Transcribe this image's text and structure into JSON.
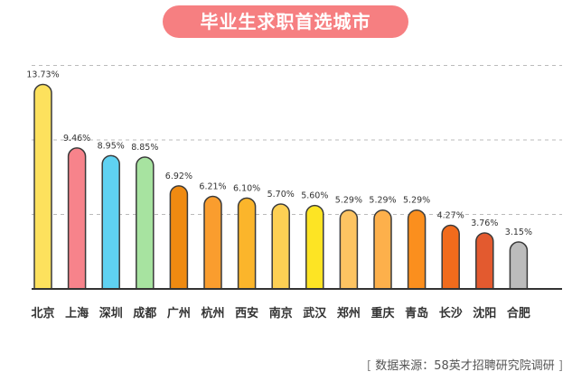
{
  "title": "毕业生求职首选城市",
  "source": {
    "open": "[",
    "text": "数据来源：58英才招聘研究院调研",
    "close": "]"
  },
  "chart_data": {
    "type": "bar",
    "title": "毕业生求职首选城市",
    "categories": [
      "北京",
      "上海",
      "深圳",
      "成都",
      "广州",
      "杭州",
      "西安",
      "南京",
      "武汉",
      "郑州",
      "重庆",
      "青岛",
      "长沙",
      "沈阳",
      "合肥"
    ],
    "values": [
      13.73,
      9.46,
      8.95,
      8.85,
      6.92,
      6.21,
      6.1,
      5.7,
      5.6,
      5.29,
      5.29,
      5.29,
      4.27,
      3.76,
      3.15
    ],
    "labels": [
      "13.73%",
      "9.46%",
      "8.95%",
      "8.85%",
      "6.92%",
      "6.21%",
      "6.10%",
      "5.70%",
      "5.60%",
      "5.29%",
      "5.29%",
      "5.29%",
      "4.27%",
      "3.76%",
      "3.15%"
    ],
    "colors": [
      "#fde15d",
      "#f7838b",
      "#5fd2f2",
      "#a7e3a0",
      "#ef8a11",
      "#fa9d2e",
      "#fbb52b",
      "#fdd054",
      "#fde424",
      "#fdc462",
      "#fdb04b",
      "#fb8f1e",
      "#f16b1c",
      "#e35a2f",
      "#bcbcbc"
    ],
    "grid": true,
    "ylim": [
      0,
      15
    ]
  }
}
